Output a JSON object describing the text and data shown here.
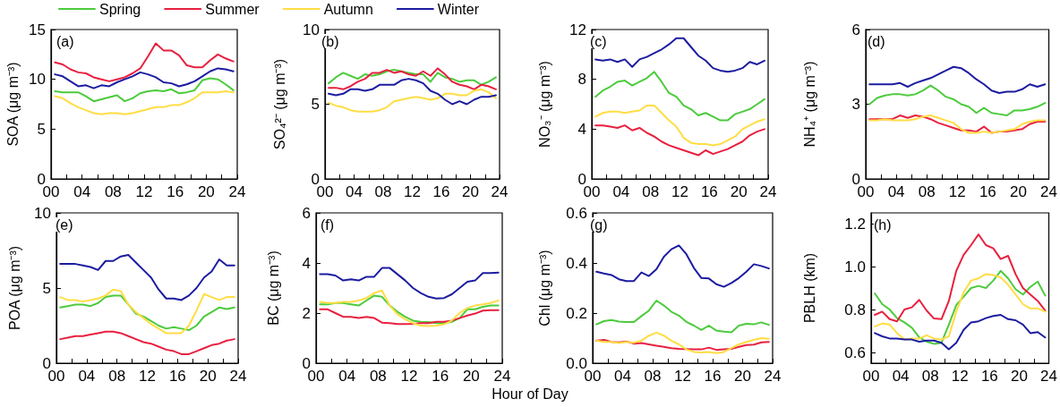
{
  "chart_data": [
    {
      "type": "line",
      "ylabel": "SOA (μg m⁻³)",
      "annotations": [
        "(a)"
      ],
      "legend": "top",
      "marker": "none",
      "line_style": "solid",
      "grid": false,
      "x": [
        0.5,
        1.5,
        2.5,
        3.5,
        4.5,
        5.5,
        6.5,
        7.5,
        8.5,
        9.5,
        10.5,
        11.5,
        12.5,
        13.5,
        14.5,
        15.5,
        16.5,
        17.5,
        18.5,
        19.5,
        20.5,
        21.5,
        22.5,
        23.5
      ],
      "xlim": [
        0,
        24
      ],
      "xticks": [
        {
          "value": 0,
          "label": "00"
        },
        {
          "value": 2,
          "label": null
        },
        {
          "value": 4,
          "label": "04"
        },
        {
          "value": 6,
          "label": null
        },
        {
          "value": 8,
          "label": "08"
        },
        {
          "value": 10,
          "label": null
        },
        12,
        {
          "value": 14,
          "label": null
        },
        16,
        {
          "value": 18,
          "label": null
        },
        20,
        {
          "value": 22,
          "label": null
        },
        24
      ],
      "ylim": [
        0,
        15
      ],
      "yticks": [
        0,
        5,
        10,
        15
      ],
      "series": [
        {
          "name": "Spring",
          "color": "#4ccb3c",
          "values": [
            8.8,
            8.7,
            8.7,
            8.7,
            8.3,
            7.8,
            8.0,
            8.2,
            8.4,
            7.8,
            8.1,
            8.6,
            8.8,
            8.9,
            8.8,
            9.0,
            8.6,
            8.7,
            8.9,
            9.9,
            10.1,
            10.0,
            9.5,
            8.9
          ]
        },
        {
          "name": "Summer",
          "color": "#e8203f",
          "values": [
            11.7,
            11.5,
            11.0,
            10.7,
            10.6,
            10.2,
            10.0,
            9.8,
            10.0,
            10.2,
            10.6,
            11.1,
            12.3,
            13.6,
            12.9,
            12.9,
            12.4,
            11.4,
            11.2,
            11.2,
            11.9,
            12.5,
            12.1,
            11.8
          ]
        },
        {
          "name": "Autumn",
          "color": "#ffdd44",
          "values": [
            8.3,
            8.1,
            7.6,
            7.2,
            6.9,
            6.6,
            6.5,
            6.6,
            6.6,
            6.5,
            6.6,
            6.8,
            7.0,
            7.2,
            7.2,
            7.4,
            7.4,
            7.7,
            8.1,
            8.7,
            8.7,
            8.7,
            8.8,
            8.7
          ]
        },
        {
          "name": "Winter",
          "color": "#1c1ca0",
          "values": [
            10.5,
            10.3,
            9.8,
            9.3,
            9.4,
            9.1,
            9.4,
            9.3,
            9.7,
            10.0,
            10.3,
            10.7,
            10.5,
            10.2,
            9.7,
            9.6,
            9.3,
            9.5,
            9.8,
            10.3,
            10.8,
            11.1,
            11.0,
            10.8
          ]
        }
      ]
    },
    {
      "type": "line",
      "ylabel": "SO₄²⁻ (μg m⁻³)",
      "annotations": [
        "(b)"
      ],
      "marker": "none",
      "line_style": "solid",
      "grid": false,
      "x": [
        0.5,
        1.5,
        2.5,
        3.5,
        4.5,
        5.5,
        6.5,
        7.5,
        8.5,
        9.5,
        10.5,
        11.5,
        12.5,
        13.5,
        14.5,
        15.5,
        16.5,
        17.5,
        18.5,
        19.5,
        20.5,
        21.5,
        22.5,
        23.5
      ],
      "xlim": [
        0,
        24
      ],
      "xticks": [
        {
          "value": 0,
          "label": "00"
        },
        {
          "value": 2,
          "label": null
        },
        {
          "value": 4,
          "label": "04"
        },
        {
          "value": 6,
          "label": null
        },
        {
          "value": 8,
          "label": "08"
        },
        {
          "value": 10,
          "label": null
        },
        12,
        {
          "value": 14,
          "label": null
        },
        16,
        {
          "value": 18,
          "label": null
        },
        20,
        {
          "value": 22,
          "label": null
        },
        24
      ],
      "ylim": [
        0,
        10
      ],
      "yticks": [
        0,
        5,
        10
      ],
      "series": [
        {
          "color": "#4ccb3c",
          "values": [
            6.4,
            6.8,
            7.1,
            6.9,
            6.7,
            7.0,
            6.9,
            7.0,
            7.2,
            7.3,
            7.2,
            7.1,
            7.0,
            7.0,
            6.5,
            7.1,
            6.8,
            6.7,
            6.5,
            6.6,
            6.6,
            6.3,
            6.5,
            6.8
          ]
        },
        {
          "color": "#e8203f",
          "values": [
            6.1,
            6.1,
            6.0,
            6.2,
            6.5,
            6.7,
            7.1,
            7.1,
            7.3,
            7.1,
            7.2,
            7.0,
            6.9,
            7.2,
            6.9,
            7.4,
            7.0,
            6.5,
            6.3,
            6.2,
            6.0,
            6.3,
            6.2,
            6.0
          ]
        },
        {
          "color": "#ffdd44",
          "values": [
            5.1,
            4.9,
            4.8,
            4.6,
            4.5,
            4.5,
            4.5,
            4.6,
            4.8,
            5.2,
            5.3,
            5.4,
            5.5,
            5.4,
            5.3,
            5.4,
            5.7,
            5.7,
            5.6,
            5.6,
            5.9,
            6.0,
            5.8,
            5.4
          ]
        },
        {
          "color": "#1c1ca0",
          "values": [
            5.7,
            5.6,
            5.7,
            6.0,
            6.0,
            5.9,
            6.0,
            6.3,
            6.3,
            6.3,
            6.6,
            6.7,
            6.6,
            6.4,
            5.9,
            5.7,
            5.3,
            5.0,
            5.2,
            5.0,
            5.3,
            5.5,
            5.5,
            5.6
          ]
        }
      ]
    },
    {
      "type": "line",
      "ylabel": "NO₃⁻ (μg m⁻³)",
      "annotations": [
        "(c)"
      ],
      "marker": "none",
      "line_style": "solid",
      "grid": false,
      "x": [
        0.5,
        1.5,
        2.5,
        3.5,
        4.5,
        5.5,
        6.5,
        7.5,
        8.5,
        9.5,
        10.5,
        11.5,
        12.5,
        13.5,
        14.5,
        15.5,
        16.5,
        17.5,
        18.5,
        19.5,
        20.5,
        21.5,
        22.5,
        23.5
      ],
      "xlim": [
        0,
        24
      ],
      "xticks": [
        {
          "value": 0,
          "label": "00"
        },
        {
          "value": 2,
          "label": null
        },
        {
          "value": 4,
          "label": "04"
        },
        {
          "value": 6,
          "label": null
        },
        {
          "value": 8,
          "label": "08"
        },
        {
          "value": 10,
          "label": null
        },
        12,
        {
          "value": 14,
          "label": null
        },
        16,
        {
          "value": 18,
          "label": null
        },
        20,
        {
          "value": 22,
          "label": null
        },
        24
      ],
      "ylim": [
        0,
        12
      ],
      "yticks": [
        0,
        4,
        8,
        12
      ],
      "series": [
        {
          "color": "#4ccb3c",
          "values": [
            6.6,
            7.1,
            7.4,
            7.8,
            7.9,
            7.5,
            7.8,
            8.1,
            8.6,
            7.8,
            6.9,
            6.6,
            5.9,
            5.6,
            5.1,
            5.3,
            5.0,
            4.7,
            4.7,
            5.2,
            5.4,
            5.6,
            6.0,
            6.4
          ]
        },
        {
          "color": "#e8203f",
          "values": [
            4.3,
            4.3,
            4.2,
            4.1,
            4.3,
            3.9,
            4.1,
            3.7,
            3.4,
            3.0,
            2.7,
            2.5,
            2.3,
            2.1,
            1.9,
            2.3,
            2.0,
            2.2,
            2.4,
            2.7,
            3.0,
            3.5,
            3.8,
            4.0
          ]
        },
        {
          "color": "#ffdd44",
          "values": [
            5.0,
            5.3,
            5.4,
            5.4,
            5.3,
            5.4,
            5.5,
            5.9,
            5.9,
            5.3,
            4.7,
            4.2,
            3.3,
            2.9,
            2.8,
            2.8,
            2.7,
            2.8,
            3.1,
            3.4,
            4.0,
            4.3,
            4.6,
            4.8
          ]
        },
        {
          "color": "#1c1ca0",
          "values": [
            9.6,
            9.5,
            9.6,
            9.4,
            9.6,
            9.0,
            9.6,
            9.8,
            10.1,
            10.4,
            10.8,
            11.3,
            11.3,
            10.6,
            9.9,
            9.5,
            8.9,
            8.7,
            8.6,
            8.7,
            8.9,
            9.4,
            9.2,
            9.5
          ]
        }
      ]
    },
    {
      "type": "line",
      "ylabel": "NH₄⁺ (μg m⁻³)",
      "annotations": [
        "(d)"
      ],
      "marker": "none",
      "line_style": "solid",
      "grid": false,
      "x": [
        0.5,
        1.5,
        2.5,
        3.5,
        4.5,
        5.5,
        6.5,
        7.5,
        8.5,
        9.5,
        10.5,
        11.5,
        12.5,
        13.5,
        14.5,
        15.5,
        16.5,
        17.5,
        18.5,
        19.5,
        20.5,
        21.5,
        22.5,
        23.5
      ],
      "xlim": [
        0,
        24
      ],
      "xticks": [
        {
          "value": 0,
          "label": "00"
        },
        {
          "value": 2,
          "label": null
        },
        {
          "value": 4,
          "label": "04"
        },
        {
          "value": 6,
          "label": null
        },
        {
          "value": 8,
          "label": "08"
        },
        {
          "value": 10,
          "label": null
        },
        12,
        {
          "value": 14,
          "label": null
        },
        16,
        {
          "value": 18,
          "label": null
        },
        20,
        {
          "value": 22,
          "label": null
        },
        24
      ],
      "ylim": [
        0,
        6
      ],
      "yticks": [
        0,
        3,
        6
      ],
      "series": [
        {
          "color": "#4ccb3c",
          "values": [
            3.0,
            3.25,
            3.35,
            3.4,
            3.4,
            3.35,
            3.4,
            3.55,
            3.75,
            3.55,
            3.3,
            3.2,
            3.0,
            2.9,
            2.65,
            2.85,
            2.65,
            2.6,
            2.55,
            2.75,
            2.75,
            2.8,
            2.9,
            3.05
          ]
        },
        {
          "color": "#e8203f",
          "values": [
            2.4,
            2.4,
            2.4,
            2.4,
            2.55,
            2.45,
            2.55,
            2.5,
            2.4,
            2.25,
            2.15,
            2.05,
            1.95,
            1.95,
            1.9,
            2.1,
            1.85,
            1.9,
            1.9,
            1.95,
            2.0,
            2.2,
            2.3,
            2.3
          ]
        },
        {
          "color": "#ffdd44",
          "values": [
            2.35,
            2.35,
            2.4,
            2.35,
            2.35,
            2.35,
            2.4,
            2.5,
            2.55,
            2.45,
            2.35,
            2.25,
            2.0,
            1.85,
            1.85,
            1.9,
            1.85,
            1.9,
            1.95,
            2.0,
            2.2,
            2.3,
            2.35,
            2.35
          ]
        },
        {
          "color": "#1c1ca0",
          "values": [
            3.8,
            3.8,
            3.8,
            3.8,
            3.85,
            3.7,
            3.85,
            3.95,
            4.05,
            4.2,
            4.35,
            4.5,
            4.45,
            4.25,
            4.0,
            3.8,
            3.55,
            3.45,
            3.5,
            3.5,
            3.6,
            3.8,
            3.7,
            3.8
          ]
        }
      ]
    },
    {
      "type": "line",
      "ylabel": "POA (μg m⁻³)",
      "annotations": [
        "(e)"
      ],
      "marker": "none",
      "line_style": "solid",
      "grid": false,
      "x": [
        0.5,
        1.5,
        2.5,
        3.5,
        4.5,
        5.5,
        6.5,
        7.5,
        8.5,
        9.5,
        10.5,
        11.5,
        12.5,
        13.5,
        14.5,
        15.5,
        16.5,
        17.5,
        18.5,
        19.5,
        20.5,
        21.5,
        22.5,
        23.5
      ],
      "xlim": [
        0,
        24
      ],
      "xticks": [
        {
          "value": 0,
          "label": "00"
        },
        {
          "value": 2,
          "label": null
        },
        {
          "value": 4,
          "label": "04"
        },
        {
          "value": 6,
          "label": null
        },
        {
          "value": 8,
          "label": "08"
        },
        {
          "value": 10,
          "label": null
        },
        12,
        {
          "value": 14,
          "label": null
        },
        16,
        {
          "value": 18,
          "label": null
        },
        20,
        {
          "value": 22,
          "label": null
        },
        24
      ],
      "ylim": [
        0,
        10
      ],
      "yticks": [
        0,
        5,
        10
      ],
      "series": [
        {
          "color": "#4ccb3c",
          "values": [
            3.7,
            3.8,
            3.9,
            3.9,
            3.8,
            4.0,
            4.4,
            4.5,
            4.5,
            3.9,
            3.3,
            3.1,
            2.8,
            2.5,
            2.3,
            2.4,
            2.3,
            2.2,
            2.5,
            3.1,
            3.4,
            3.7,
            3.6,
            3.7
          ]
        },
        {
          "color": "#e8203f",
          "values": [
            1.6,
            1.7,
            1.8,
            1.8,
            1.9,
            2.0,
            2.1,
            2.1,
            2.0,
            1.8,
            1.6,
            1.4,
            1.3,
            1.1,
            0.9,
            0.8,
            0.6,
            0.6,
            0.8,
            1.0,
            1.2,
            1.3,
            1.5,
            1.6
          ]
        },
        {
          "color": "#ffdd44",
          "values": [
            4.4,
            4.2,
            4.2,
            4.1,
            4.2,
            4.3,
            4.5,
            4.9,
            4.8,
            3.9,
            3.4,
            3.0,
            2.6,
            2.3,
            2.0,
            2.0,
            2.0,
            2.5,
            3.5,
            4.6,
            4.4,
            4.2,
            4.4,
            4.4
          ]
        },
        {
          "color": "#1c1ca0",
          "values": [
            6.6,
            6.6,
            6.6,
            6.5,
            6.4,
            6.2,
            6.8,
            6.8,
            7.1,
            7.2,
            6.7,
            6.2,
            5.7,
            4.9,
            4.3,
            4.3,
            4.2,
            4.5,
            5.0,
            5.7,
            6.1,
            6.9,
            6.5,
            6.5
          ]
        }
      ]
    },
    {
      "type": "line",
      "ylabel": "BC (μg m⁻³)",
      "xlabel": "Hour of Day",
      "annotations": [
        "(f)"
      ],
      "marker": "none",
      "line_style": "solid",
      "grid": false,
      "x": [
        0.5,
        1.5,
        2.5,
        3.5,
        4.5,
        5.5,
        6.5,
        7.5,
        8.5,
        9.5,
        10.5,
        11.5,
        12.5,
        13.5,
        14.5,
        15.5,
        16.5,
        17.5,
        18.5,
        19.5,
        20.5,
        21.5,
        22.5,
        23.5
      ],
      "xlim": [
        0,
        24
      ],
      "xticks": [
        {
          "value": 0,
          "label": "00"
        },
        {
          "value": 2,
          "label": null
        },
        {
          "value": 4,
          "label": "04"
        },
        {
          "value": 6,
          "label": null
        },
        {
          "value": 8,
          "label": "08"
        },
        {
          "value": 10,
          "label": null
        },
        12,
        {
          "value": 14,
          "label": null
        },
        16,
        {
          "value": 18,
          "label": null
        },
        20,
        {
          "value": 22,
          "label": null
        },
        24
      ],
      "ylim": [
        0,
        6
      ],
      "yticks": [
        0,
        2,
        4,
        6
      ],
      "series": [
        {
          "color": "#4ccb3c",
          "values": [
            2.35,
            2.35,
            2.4,
            2.4,
            2.35,
            2.3,
            2.5,
            2.7,
            2.65,
            2.3,
            2.05,
            1.85,
            1.7,
            1.65,
            1.64,
            1.6,
            1.6,
            1.65,
            1.8,
            2.15,
            2.15,
            2.25,
            2.3,
            2.3
          ]
        },
        {
          "color": "#e8203f",
          "values": [
            2.15,
            2.15,
            2.0,
            1.85,
            1.85,
            1.8,
            1.85,
            1.8,
            1.62,
            1.6,
            1.56,
            1.56,
            1.57,
            1.6,
            1.6,
            1.65,
            1.65,
            1.7,
            1.8,
            1.9,
            1.98,
            2.1,
            2.12,
            2.12
          ]
        },
        {
          "color": "#ffdd44",
          "values": [
            2.45,
            2.4,
            2.4,
            2.45,
            2.45,
            2.5,
            2.6,
            2.8,
            2.9,
            2.3,
            1.95,
            1.75,
            1.6,
            1.5,
            1.48,
            1.5,
            1.55,
            1.7,
            2.0,
            2.2,
            2.3,
            2.35,
            2.4,
            2.5
          ]
        },
        {
          "color": "#1c1ca0",
          "values": [
            3.55,
            3.55,
            3.5,
            3.3,
            3.35,
            3.3,
            3.45,
            3.45,
            3.8,
            3.8,
            3.55,
            3.3,
            3.0,
            2.8,
            2.65,
            2.58,
            2.6,
            2.75,
            3.0,
            3.25,
            3.3,
            3.6,
            3.6,
            3.62
          ]
        }
      ]
    },
    {
      "type": "line",
      "ylabel": "Chl (μg m⁻³)",
      "annotations": [
        "(g)"
      ],
      "marker": "none",
      "line_style": "solid",
      "grid": false,
      "x": [
        0.5,
        1.5,
        2.5,
        3.5,
        4.5,
        5.5,
        6.5,
        7.5,
        8.5,
        9.5,
        10.5,
        11.5,
        12.5,
        13.5,
        14.5,
        15.5,
        16.5,
        17.5,
        18.5,
        19.5,
        20.5,
        21.5,
        22.5,
        23.5
      ],
      "xlim": [
        0,
        24
      ],
      "xticks": [
        {
          "value": 0,
          "label": "00"
        },
        {
          "value": 2,
          "label": null
        },
        {
          "value": 4,
          "label": "04"
        },
        {
          "value": 6,
          "label": null
        },
        {
          "value": 8,
          "label": "08"
        },
        {
          "value": 10,
          "label": null
        },
        12,
        {
          "value": 14,
          "label": null
        },
        16,
        {
          "value": 18,
          "label": null
        },
        20,
        {
          "value": 22,
          "label": null
        },
        24
      ],
      "ylim": [
        0,
        0.6
      ],
      "yticks": [
        {
          "value": 0,
          "label": "0.0"
        },
        0.2,
        0.4,
        0.6
      ],
      "series": [
        {
          "color": "#4ccb3c",
          "values": [
            0.155,
            0.168,
            0.172,
            0.166,
            0.164,
            0.164,
            0.188,
            0.21,
            0.25,
            0.23,
            0.205,
            0.19,
            0.165,
            0.15,
            0.133,
            0.15,
            0.13,
            0.126,
            0.123,
            0.15,
            0.157,
            0.155,
            0.163,
            0.153
          ]
        },
        {
          "color": "#e8203f",
          "values": [
            0.09,
            0.093,
            0.085,
            0.083,
            0.087,
            0.078,
            0.08,
            0.075,
            0.07,
            0.065,
            0.06,
            0.057,
            0.056,
            0.055,
            0.055,
            0.062,
            0.053,
            0.055,
            0.057,
            0.065,
            0.072,
            0.074,
            0.083,
            0.085
          ]
        },
        {
          "color": "#ffdd44",
          "values": [
            0.09,
            0.085,
            0.085,
            0.08,
            0.085,
            0.082,
            0.09,
            0.11,
            0.122,
            0.11,
            0.09,
            0.075,
            0.055,
            0.045,
            0.043,
            0.045,
            0.04,
            0.045,
            0.06,
            0.075,
            0.085,
            0.093,
            0.1,
            0.097
          ]
        },
        {
          "color": "#1c1ca0",
          "values": [
            0.365,
            0.358,
            0.352,
            0.335,
            0.328,
            0.328,
            0.362,
            0.348,
            0.375,
            0.425,
            0.455,
            0.47,
            0.435,
            0.38,
            0.34,
            0.338,
            0.315,
            0.305,
            0.32,
            0.34,
            0.365,
            0.395,
            0.388,
            0.378
          ]
        }
      ]
    },
    {
      "type": "line",
      "ylabel": "PBLH (km)",
      "annotations": [
        "(h)"
      ],
      "marker": "none",
      "line_style": "solid",
      "grid": false,
      "x": [
        0.5,
        1.5,
        2.5,
        3.5,
        4.5,
        5.5,
        6.5,
        7.5,
        8.5,
        9.5,
        10.5,
        11.5,
        12.5,
        13.5,
        14.5,
        15.5,
        16.5,
        17.5,
        18.5,
        19.5,
        20.5,
        21.5,
        22.5,
        23.5
      ],
      "xlim": [
        0,
        24
      ],
      "xticks": [
        {
          "value": 0,
          "label": "00"
        },
        {
          "value": 2,
          "label": null
        },
        {
          "value": 4,
          "label": "04"
        },
        {
          "value": 6,
          "label": null
        },
        {
          "value": 8,
          "label": "08"
        },
        {
          "value": 10,
          "label": null
        },
        12,
        {
          "value": 14,
          "label": null
        },
        16,
        {
          "value": 18,
          "label": null
        },
        20,
        {
          "value": 22,
          "label": null
        },
        24
      ],
      "ylim": [
        0.55,
        1.25
      ],
      "yticks": [
        0.6,
        0.8,
        {
          "value": 1,
          "label": "1.0"
        },
        1.2
      ],
      "series": [
        {
          "color": "#4ccb3c",
          "values": [
            0.875,
            0.825,
            0.8,
            0.76,
            0.74,
            0.715,
            0.67,
            0.65,
            0.64,
            0.645,
            0.73,
            0.82,
            0.86,
            0.9,
            0.91,
            0.9,
            0.935,
            0.98,
            0.945,
            0.895,
            0.87,
            0.905,
            0.93,
            0.865
          ]
        },
        {
          "color": "#e8203f",
          "values": [
            0.775,
            0.79,
            0.755,
            0.745,
            0.8,
            0.81,
            0.845,
            0.795,
            0.758,
            0.755,
            0.84,
            0.98,
            1.055,
            1.1,
            1.15,
            1.1,
            1.085,
            1.035,
            1.05,
            0.965,
            0.9,
            0.87,
            0.84,
            0.795
          ]
        },
        {
          "color": "#ffdd44",
          "values": [
            0.72,
            0.735,
            0.73,
            0.69,
            0.66,
            0.665,
            0.665,
            0.68,
            0.665,
            0.66,
            0.675,
            0.79,
            0.88,
            0.935,
            0.945,
            0.965,
            0.96,
            0.95,
            0.915,
            0.87,
            0.825,
            0.805,
            0.805,
            0.79
          ]
        },
        {
          "color": "#1c1ca0",
          "values": [
            0.69,
            0.675,
            0.665,
            0.665,
            0.66,
            0.66,
            0.65,
            0.655,
            0.655,
            0.645,
            0.615,
            0.645,
            0.705,
            0.74,
            0.745,
            0.76,
            0.77,
            0.775,
            0.755,
            0.75,
            0.73,
            0.69,
            0.695,
            0.67
          ]
        }
      ]
    }
  ]
}
